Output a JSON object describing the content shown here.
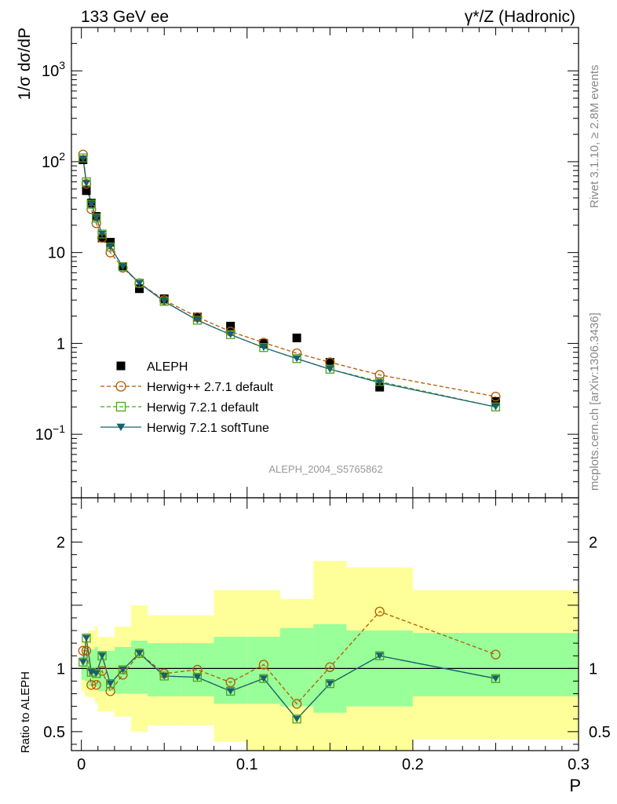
{
  "header": {
    "left_label": "133 GeV ee",
    "right_label": "γ*/Z (Hadronic)"
  },
  "side_labels": {
    "rivet": "Rivet 3.1.10, ≥ 2.8M events",
    "mcplots": "mcplots.cern.ch [arXiv:1306.3436]"
  },
  "watermark": "ALEPH_2004_S5765862",
  "colors": {
    "data": "#000000",
    "herwigpp": "#b35900",
    "herwig721": "#4aa51e",
    "softtune": "#1a5e70",
    "band_outer": "#ffff99",
    "band_inner": "#99ff99"
  },
  "chart_data": [
    {
      "type": "scatter",
      "ylabel": "1/σ  dσ/dP",
      "yscale": "log",
      "ylim": [
        0.02,
        3000
      ],
      "xlim": [
        -0.006,
        0.3
      ],
      "y_tick_labels": [
        "10^-1",
        "1",
        "10",
        "10^2",
        "10^3"
      ],
      "series": [
        {
          "name": "ALEPH",
          "marker": "filled-square",
          "x": [
            0.001,
            0.003,
            0.006,
            0.009,
            0.0125,
            0.0175,
            0.025,
            0.035,
            0.05,
            0.07,
            0.09,
            0.11,
            0.13,
            0.15,
            0.18,
            0.25
          ],
          "y": [
            105,
            48,
            35,
            25,
            14.5,
            13,
            7,
            4,
            3.1,
            1.95,
            1.55,
            1.0,
            1.15,
            0.62,
            0.33,
            0.23
          ]
        },
        {
          "name": "Herwig++ 2.7.1 default",
          "marker": "open-circle",
          "line": "dashed",
          "x": [
            0.001,
            0.003,
            0.006,
            0.009,
            0.0125,
            0.0175,
            0.025,
            0.035,
            0.05,
            0.07,
            0.09,
            0.11,
            0.13,
            0.15,
            0.18,
            0.25
          ],
          "y": [
            120,
            57,
            30,
            21,
            14.5,
            10,
            6.8,
            4.6,
            3.0,
            1.95,
            1.35,
            1.02,
            0.78,
            0.62,
            0.45,
            0.26
          ]
        },
        {
          "name": "Herwig 7.2.1 default",
          "marker": "open-square",
          "line": "dashed",
          "x": [
            0.001,
            0.003,
            0.006,
            0.009,
            0.0125,
            0.0175,
            0.025,
            0.035,
            0.05,
            0.07,
            0.09,
            0.11,
            0.13,
            0.15,
            0.18,
            0.25
          ],
          "y": [
            110,
            60,
            34,
            24,
            16,
            11.5,
            7.0,
            4.6,
            2.9,
            1.8,
            1.25,
            0.9,
            0.68,
            0.52,
            0.38,
            0.2
          ]
        },
        {
          "name": "Herwig 7.2.1 softTune",
          "marker": "filled-triangle-down",
          "line": "solid",
          "x": [
            0.001,
            0.003,
            0.006,
            0.009,
            0.0125,
            0.0175,
            0.025,
            0.035,
            0.05,
            0.07,
            0.09,
            0.11,
            0.13,
            0.15,
            0.18,
            0.25
          ],
          "y": [
            108,
            58,
            34,
            24,
            16,
            11.5,
            7.0,
            4.6,
            2.9,
            1.8,
            1.25,
            0.9,
            0.68,
            0.52,
            0.37,
            0.2
          ]
        }
      ],
      "legend_position": "lower-left"
    },
    {
      "type": "scatter",
      "ylabel": "Ratio to ALEPH",
      "xlabel": "P",
      "ylim": [
        0.35,
        2.35
      ],
      "xlim": [
        -0.006,
        0.3
      ],
      "y_tick_labels": [
        "0.5",
        "1",
        "2"
      ],
      "x_tick_labels": [
        "0",
        "0.1",
        "0.2",
        "0.3"
      ],
      "reference_line": 1,
      "bands": [
        {
          "x0": 0.0,
          "x1": 0.002,
          "outer": [
            0.82,
            1.22
          ],
          "inner": [
            0.91,
            1.12
          ]
        },
        {
          "x0": 0.002,
          "x1": 0.004,
          "outer": [
            0.78,
            1.25
          ],
          "inner": [
            0.9,
            1.13
          ]
        },
        {
          "x0": 0.004,
          "x1": 0.008,
          "outer": [
            0.77,
            1.3
          ],
          "inner": [
            0.86,
            1.15
          ]
        },
        {
          "x0": 0.008,
          "x1": 0.01,
          "outer": [
            0.73,
            1.33
          ],
          "inner": [
            0.85,
            1.17
          ]
        },
        {
          "x0": 0.01,
          "x1": 0.015,
          "outer": [
            0.66,
            1.25
          ],
          "inner": [
            0.82,
            1.14
          ]
        },
        {
          "x0": 0.015,
          "x1": 0.02,
          "outer": [
            0.66,
            1.25
          ],
          "inner": [
            0.82,
            1.14
          ]
        },
        {
          "x0": 0.02,
          "x1": 0.03,
          "outer": [
            0.62,
            1.33
          ],
          "inner": [
            0.8,
            1.17
          ]
        },
        {
          "x0": 0.03,
          "x1": 0.04,
          "outer": [
            0.5,
            1.5
          ],
          "inner": [
            0.8,
            1.22
          ]
        },
        {
          "x0": 0.04,
          "x1": 0.06,
          "outer": [
            0.55,
            1.42
          ],
          "inner": [
            0.78,
            1.2
          ]
        },
        {
          "x0": 0.06,
          "x1": 0.08,
          "outer": [
            0.55,
            1.42
          ],
          "inner": [
            0.78,
            1.2
          ]
        },
        {
          "x0": 0.08,
          "x1": 0.1,
          "outer": [
            0.42,
            1.62
          ],
          "inner": [
            0.72,
            1.25
          ]
        },
        {
          "x0": 0.1,
          "x1": 0.12,
          "outer": [
            0.33,
            1.62
          ],
          "inner": [
            0.72,
            1.25
          ]
        },
        {
          "x0": 0.12,
          "x1": 0.14,
          "outer": [
            0.35,
            1.55
          ],
          "inner": [
            0.7,
            1.32
          ]
        },
        {
          "x0": 0.14,
          "x1": 0.16,
          "outer": [
            0.3,
            1.85
          ],
          "inner": [
            0.65,
            1.35
          ]
        },
        {
          "x0": 0.16,
          "x1": 0.2,
          "outer": [
            0.27,
            1.8
          ],
          "inner": [
            0.7,
            1.3
          ]
        },
        {
          "x0": 0.2,
          "x1": 0.3,
          "outer": [
            0.44,
            1.62
          ],
          "inner": [
            0.78,
            1.28
          ]
        }
      ],
      "series": [
        {
          "name": "Herwig++ 2.7.1 default",
          "x": [
            0.001,
            0.003,
            0.006,
            0.009,
            0.0125,
            0.0175,
            0.025,
            0.035,
            0.05,
            0.07,
            0.09,
            0.11,
            0.13,
            0.15,
            0.18,
            0.25
          ],
          "y": [
            1.14,
            1.14,
            0.87,
            0.87,
            0.98,
            0.82,
            0.95,
            1.12,
            0.96,
            0.99,
            0.89,
            1.03,
            0.72,
            1.01,
            1.45,
            1.11
          ]
        },
        {
          "name": "Herwig 7.2.1 default",
          "x": [
            0.001,
            0.003,
            0.006,
            0.009,
            0.0125,
            0.0175,
            0.025,
            0.035,
            0.05,
            0.07,
            0.09,
            0.11,
            0.13,
            0.15,
            0.18,
            0.25
          ],
          "y": [
            1.05,
            1.24,
            0.97,
            0.96,
            1.1,
            0.88,
            0.99,
            1.12,
            0.94,
            0.93,
            0.82,
            0.92,
            0.6,
            0.88,
            1.1,
            0.92
          ]
        },
        {
          "name": "Herwig 7.2.1 softTune",
          "x": [
            0.001,
            0.003,
            0.006,
            0.009,
            0.0125,
            0.0175,
            0.025,
            0.035,
            0.05,
            0.07,
            0.09,
            0.11,
            0.13,
            0.15,
            0.18,
            0.25
          ],
          "y": [
            1.05,
            1.24,
            0.97,
            0.96,
            1.1,
            0.88,
            0.99,
            1.12,
            0.94,
            0.93,
            0.82,
            0.92,
            0.6,
            0.88,
            1.1,
            0.92
          ]
        }
      ]
    }
  ]
}
